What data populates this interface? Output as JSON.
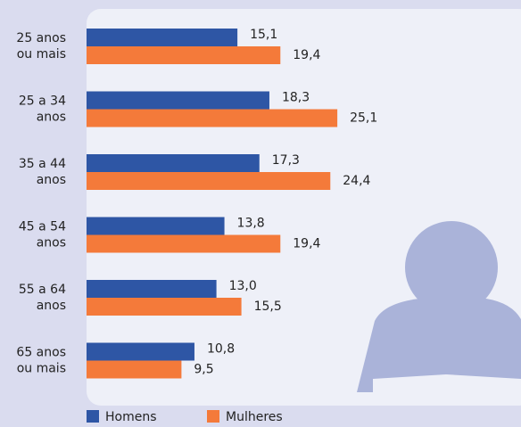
{
  "chart_data": {
    "type": "hbar",
    "categories": [
      [
        "25 anos",
        "ou mais"
      ],
      [
        "25 a 34",
        "anos"
      ],
      [
        "35 a 44",
        "anos"
      ],
      [
        "45 a 54",
        "anos"
      ],
      [
        "55 a 64",
        "anos"
      ],
      [
        "65 anos",
        "ou mais"
      ]
    ],
    "series": [
      {
        "name": "Homens",
        "color": "#2e56a5",
        "values": [
          15.1,
          18.3,
          17.3,
          13.8,
          13.0,
          10.8
        ],
        "value_labels": [
          "15,1",
          "18,3",
          "17,3",
          "13,8",
          "13,0",
          "10,8"
        ]
      },
      {
        "name": "Mulheres",
        "color": "#f47a3a",
        "values": [
          19.4,
          25.1,
          24.4,
          19.4,
          15.5,
          9.5
        ],
        "value_labels": [
          "19,4",
          "25,1",
          "24,4",
          "19,4",
          "15,5",
          "9,5"
        ]
      }
    ],
    "xlim": [
      0,
      25
    ]
  }
}
